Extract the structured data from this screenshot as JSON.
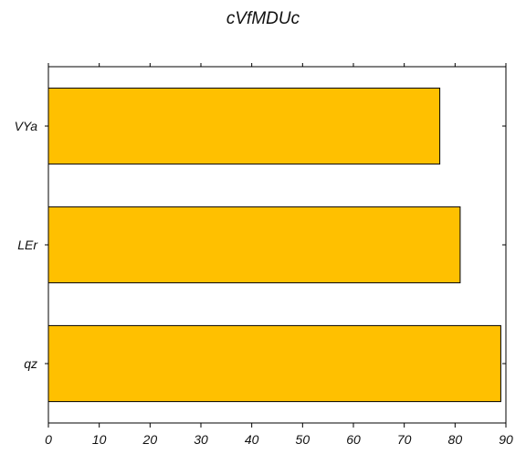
{
  "chart_data": {
    "type": "bar",
    "orientation": "horizontal",
    "title": "cVfMDUc",
    "xlabel": "",
    "ylabel": "",
    "categories": [
      "VYa",
      "LEr",
      "qz"
    ],
    "values": [
      77,
      81,
      89
    ],
    "xlim": [
      0,
      90
    ],
    "xticks": [
      0,
      10,
      20,
      30,
      40,
      50,
      60,
      70,
      80,
      90
    ],
    "grid": false,
    "legend": "none",
    "colors": {
      "bar_fill": "#FFC000",
      "bar_stroke": "#000000",
      "axis": "#000000"
    }
  }
}
